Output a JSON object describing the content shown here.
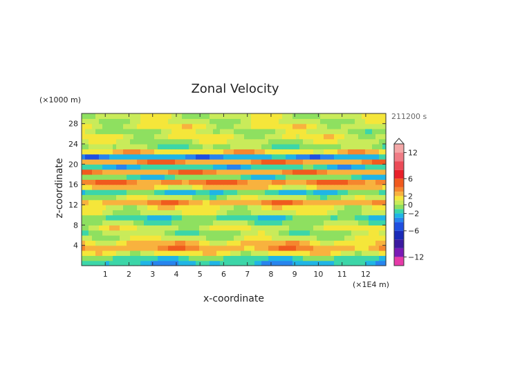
{
  "chart_data": {
    "type": "heatmap",
    "title": "Zonal Velocity",
    "time_label": "211200 s",
    "xlabel": "x-coordinate",
    "ylabel": "z-coordinate",
    "x_unit": "(×1E4 m)",
    "y_unit": "(×1000 m)",
    "xlim": [
      0,
      12.85
    ],
    "ylim": [
      0,
      30
    ],
    "x_ticks": [
      1,
      2,
      3,
      4,
      5,
      6,
      7,
      8,
      9,
      10,
      11,
      12
    ],
    "y_ticks": [
      4,
      8,
      12,
      16,
      20,
      24,
      28
    ],
    "colorbar": {
      "labeled_ticks": [
        12,
        6,
        2,
        0,
        -2,
        -6,
        -12
      ],
      "levels": [
        {
          "from": 12,
          "to": 14,
          "color": "#f4a7a7"
        },
        {
          "from": 10,
          "to": 12,
          "color": "#f07c86"
        },
        {
          "from": 8,
          "to": 10,
          "color": "#ec4b58"
        },
        {
          "from": 6,
          "to": 8,
          "color": "#e8202a"
        },
        {
          "from": 4,
          "to": 6,
          "color": "#f05a1e"
        },
        {
          "from": 3,
          "to": 4,
          "color": "#f5862e"
        },
        {
          "from": 2,
          "to": 3,
          "color": "#f8b23e"
        },
        {
          "from": 1,
          "to": 2,
          "color": "#f5e63a"
        },
        {
          "from": 0,
          "to": 1,
          "color": "#c9eb5a"
        },
        {
          "from": -1,
          "to": 0,
          "color": "#8ee060"
        },
        {
          "from": -2,
          "to": -1,
          "color": "#3cd6a8"
        },
        {
          "from": -3,
          "to": -2,
          "color": "#1fb5e6"
        },
        {
          "from": -4,
          "to": -3,
          "color": "#2884ee"
        },
        {
          "from": -6,
          "to": -4,
          "color": "#1f4fe0"
        },
        {
          "from": -8,
          "to": -6,
          "color": "#1a2ab8"
        },
        {
          "from": -10,
          "to": -8,
          "color": "#3b1aa0"
        },
        {
          "from": -12,
          "to": -10,
          "color": "#7a1ab5"
        },
        {
          "from": -14,
          "to": -12,
          "color": "#e63aa8"
        }
      ]
    },
    "vertical_profile": [
      {
        "z": 0.5,
        "u": -2.4
      },
      {
        "z": 1.5,
        "u": -1.4
      },
      {
        "z": 2.5,
        "u": 1.2
      },
      {
        "z": 3.5,
        "u": 3.0
      },
      {
        "z": 4.5,
        "u": 2.0
      },
      {
        "z": 5.5,
        "u": 0.5
      },
      {
        "z": 6.5,
        "u": -0.2
      },
      {
        "z": 7.5,
        "u": 0.8
      },
      {
        "z": 8.5,
        "u": -0.4
      },
      {
        "z": 9.5,
        "u": -1.3
      },
      {
        "z": 10.5,
        "u": 0.6
      },
      {
        "z": 11.5,
        "u": 1.1
      },
      {
        "z": 12.5,
        "u": 3.0
      },
      {
        "z": 13.5,
        "u": 0.3
      },
      {
        "z": 14.5,
        "u": -1.6
      },
      {
        "z": 15.5,
        "u": 1.8
      },
      {
        "z": 16.5,
        "u": 3.5
      },
      {
        "z": 17.5,
        "u": -1.2
      },
      {
        "z": 18.5,
        "u": 3.2
      },
      {
        "z": 19.5,
        "u": -1.8
      },
      {
        "z": 20.5,
        "u": 3.3
      },
      {
        "z": 21.5,
        "u": -2.8
      },
      {
        "z": 22.5,
        "u": 2.0
      },
      {
        "z": 23.5,
        "u": -0.4
      },
      {
        "z": 24.5,
        "u": 0.3
      },
      {
        "z": 25.5,
        "u": 0.9
      },
      {
        "z": 26.5,
        "u": 0.2
      },
      {
        "z": 27.5,
        "u": 1.0
      },
      {
        "z": 28.5,
        "u": 0.4
      },
      {
        "z": 29.5,
        "u": 0.6
      }
    ]
  }
}
